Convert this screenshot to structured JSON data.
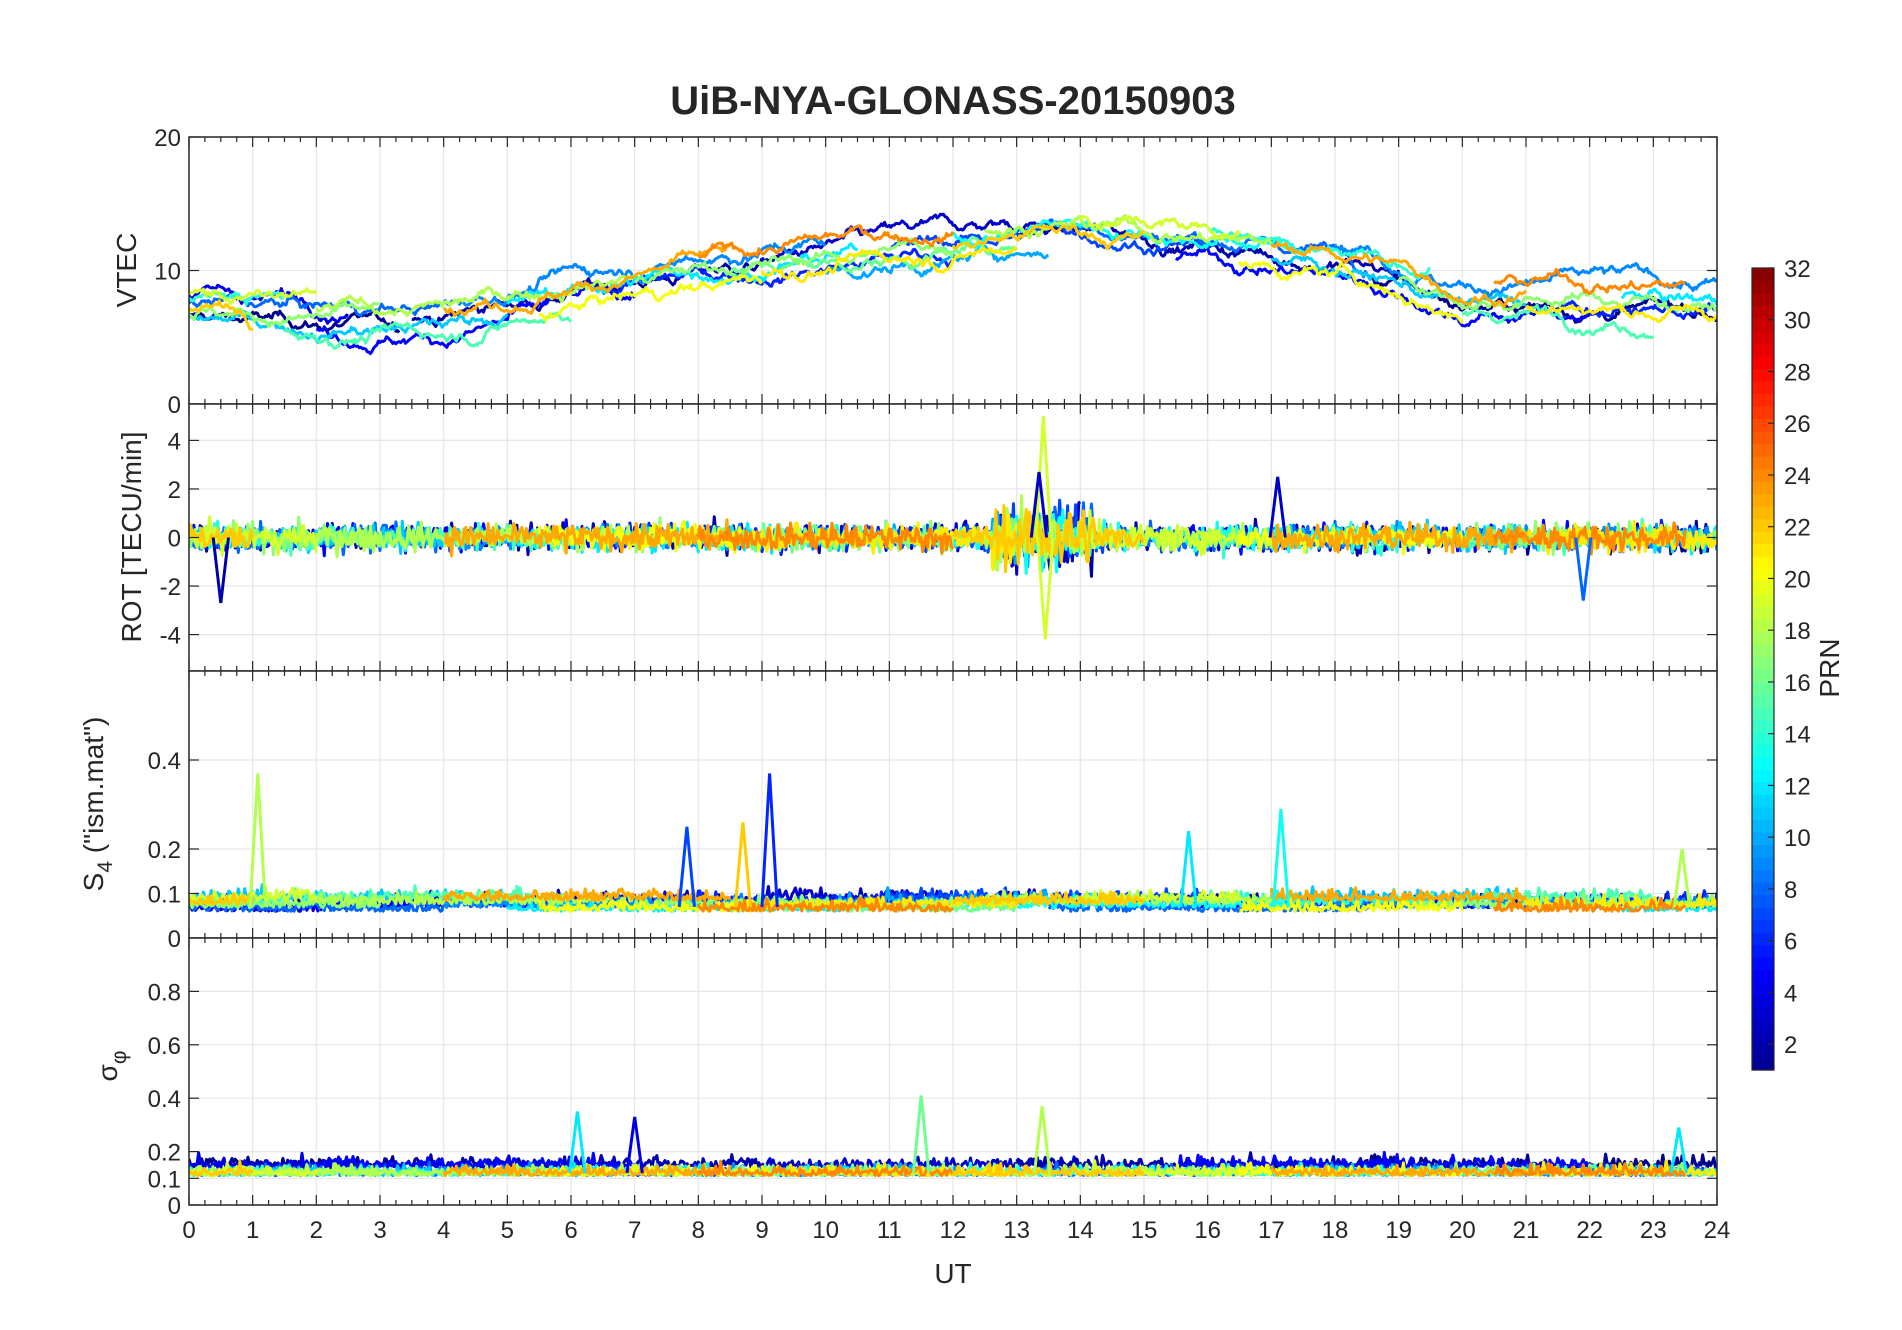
{
  "title": "UiB-NYA-GLONASS-20150903",
  "x_axis": {
    "label": "UT",
    "range": [
      0,
      24
    ],
    "ticks": [
      0,
      1,
      2,
      3,
      4,
      5,
      6,
      7,
      8,
      9,
      10,
      11,
      12,
      13,
      14,
      15,
      16,
      17,
      18,
      19,
      20,
      21,
      22,
      23,
      24
    ],
    "tick_labels": [
      "0",
      "1",
      "2",
      "3",
      "4",
      "5",
      "6",
      "7",
      "8",
      "9",
      "10",
      "11",
      "12",
      "13",
      "14",
      "15",
      "16",
      "17",
      "18",
      "19",
      "20",
      "21",
      "22",
      "23",
      "24"
    ]
  },
  "colorbar": {
    "label": "PRN",
    "range": [
      1,
      32
    ],
    "ticks": [
      2,
      4,
      6,
      8,
      10,
      12,
      14,
      16,
      18,
      20,
      22,
      24,
      26,
      28,
      30,
      32
    ],
    "tick_labels": [
      "2",
      "4",
      "6",
      "8",
      "10",
      "12",
      "14",
      "16",
      "18",
      "20",
      "22",
      "24",
      "26",
      "28",
      "30",
      "32"
    ]
  },
  "chart_data": [
    {
      "type": "line",
      "panel": "VTEC",
      "ylabel": "VTEC",
      "ylim": [
        0,
        20
      ],
      "yticks": [
        0,
        10,
        20
      ],
      "ytick_labels": [
        "0",
        "10",
        "20"
      ],
      "grid": true,
      "note": "Multiple GLONASS satellite tracks colored by PRN (1-24); VTEC mostly 5-15 TECU, rising from ~6 at 0-4 UT to ~12-15 around 11-15 UT, declining to ~7-9 at 20-24 UT."
    },
    {
      "type": "line",
      "panel": "ROT",
      "ylabel": "ROT [TECU/min]",
      "ylim": [
        -5.5,
        5.5
      ],
      "yticks": [
        -4,
        -2,
        0,
        2,
        4
      ],
      "ytick_labels": [
        "-4",
        "-2",
        "0",
        "2",
        "4"
      ],
      "grid": true,
      "note": "ROT fluctuates around 0 within about ±2 TECU/min; largest excursions near 13.4 UT (~+5 and ~-4.2)."
    },
    {
      "type": "line",
      "panel": "S4",
      "ylabel": "S4 (\"ism.mat\")",
      "ylim": [
        0,
        0.6
      ],
      "yticks": [
        0,
        0.1,
        0.2,
        0.4
      ],
      "ytick_labels": [
        "0",
        "0.1",
        "0.2",
        "0.4"
      ],
      "grid": true,
      "note": "S4 mostly 0.03-0.12; peaks ~0.37 near 1.1 UT and 9.1 UT, ~0.29 near 17.2 UT, ~0.26 near 8.7 UT."
    },
    {
      "type": "line",
      "panel": "sigma_phi",
      "ylabel": "σ φ",
      "ylim": [
        0,
        1
      ],
      "yticks": [
        0,
        0.1,
        0.2,
        0.4,
        0.6,
        0.8
      ],
      "ytick_labels": [
        "0",
        "0.1",
        "0.2",
        "0.4",
        "0.6",
        "0.8"
      ],
      "grid": true,
      "note": "σφ mostly 0.07-0.2; spikes ~0.41 near 11.5 UT, ~0.37 near 13.4 UT, ~0.35 near 6.1 UT."
    }
  ],
  "panel_labels": {
    "vtec": "VTEC",
    "rot": "ROT [TECU/min]",
    "s4_main": "S",
    "s4_sub": "4",
    "s4_rest": " (\"ism.mat\")",
    "sigma_main": "σ",
    "sigma_sub": "φ"
  },
  "colors": {
    "jet_scale": [
      "#00008f",
      "#0000ff",
      "#0080ff",
      "#00ffff",
      "#80ff80",
      "#ffff00",
      "#ff8000",
      "#ff0000",
      "#800000"
    ],
    "axis": "#262626",
    "grid": "#e6e6e6"
  }
}
